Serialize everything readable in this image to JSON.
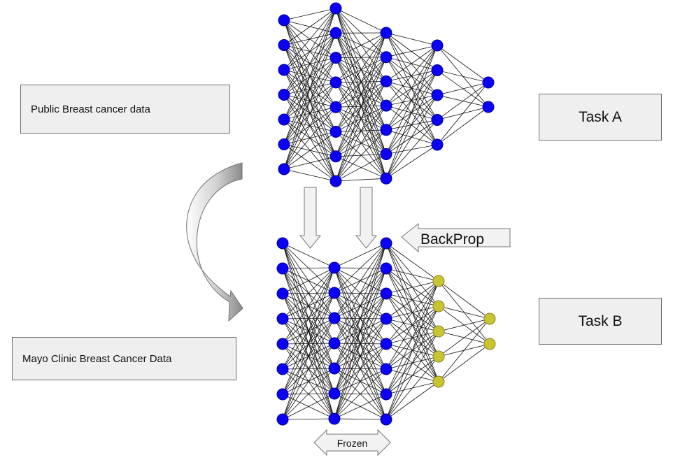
{
  "labels": {
    "public_data": "Public Breast cancer data",
    "mayo_data": "Mayo Clinic Breast Cancer Data",
    "task_a": "Task A",
    "task_b": "Task B",
    "backprop": "BackProp",
    "frozen": "Frozen"
  },
  "network_a": {
    "layer_sizes": [
      7,
      8,
      7,
      5,
      2
    ]
  },
  "network_b": {
    "layer_sizes": [
      8,
      7,
      8,
      5,
      2
    ],
    "frozen_layer_count": 3
  },
  "colors": {
    "node_blue": "#0b00f2",
    "node_trainable": "#c9c432",
    "box_fill": "#efefef",
    "box_border": "#6f6f6f",
    "edge": "#111111",
    "arrow_fill": "#f2f2f2",
    "arrow_border": "#777777"
  }
}
